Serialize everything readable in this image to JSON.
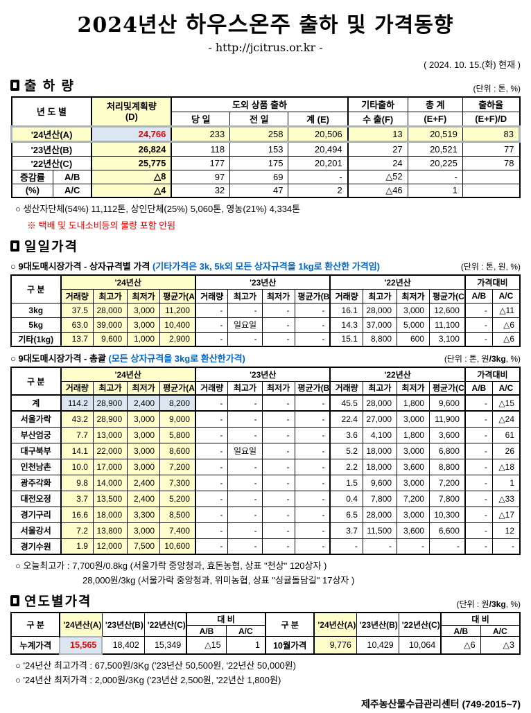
{
  "title": {
    "pre": "2024년산 ",
    "brand": "하우스온주",
    "post": " 출하 및 가격동향"
  },
  "subtitle_url": "- http://jcitrus.or.kr -",
  "as_of": "( 2024. 10. 15.(화) 현재 )",
  "colors": {
    "highlight_yellow": "#FFFFCC",
    "highlight_blue": "#DCE6F1",
    "alert_red": "#E60000",
    "note_blue": "#0064C8"
  },
  "shipment": {
    "section_title": "출 하 량",
    "unit": "(단위 : 톤, %)",
    "header": {
      "year_col": "년  도  별",
      "plan": "처리및계획량",
      "plan_sub": "(D)",
      "outbound_group": "도외 상품 출하",
      "day": "당 일",
      "prev_day": "전 일",
      "sum_e": "계 (E)",
      "etc_group": "기타출하",
      "export_f": "수 출(F)",
      "total": "총  계",
      "total_sub": "(E+F)",
      "rate": "출하율",
      "rate_sub": "(E+F)/D"
    },
    "rows": [
      {
        "label": "'24년산(A)",
        "em": true,
        "cells": [
          "24,766",
          "233",
          "258",
          "20,506",
          "13",
          "20,519",
          "83"
        ]
      },
      {
        "label": "'23년산(B)",
        "em": false,
        "cells": [
          "26,824",
          "118",
          "153",
          "20,494",
          "27",
          "20,521",
          "77"
        ]
      },
      {
        "label": "'22년산(C)",
        "em": false,
        "cells": [
          "25,775",
          "177",
          "175",
          "20,201",
          "24",
          "20,225",
          "78"
        ]
      }
    ],
    "delta_rows": [
      {
        "label1": "증감률",
        "label2": "A/B",
        "cells": [
          "△8",
          "97",
          "69",
          "-",
          "△52",
          "-",
          ""
        ]
      },
      {
        "label1": "(%)",
        "label2": "A/C",
        "cells": [
          "△4",
          "32",
          "47",
          "2",
          "△46",
          "1",
          ""
        ]
      }
    ],
    "note1": "○ 생산자단체(54%) 11,112톤, 상인단체(25%) 5,060톤, 영농(21%) 4,334톤",
    "note2": "※ 택배 및 도내소비등의 물량 포함 안됨"
  },
  "daily": {
    "section_title": "일일가격",
    "gubun": "구  분",
    "col_groups": [
      "'24년산",
      "'23년산",
      "'22년산",
      "가격대비"
    ],
    "sub_cols_24": [
      "거래량",
      "최고가",
      "최저가",
      "평균가(A)"
    ],
    "sub_cols_23": [
      "거래량",
      "최고가",
      "최저가",
      "평균가(B)"
    ],
    "sub_cols_22": [
      "거래량",
      "최고가",
      "최저가",
      "평균가(C)"
    ],
    "compare_cols": [
      "A/B",
      "A/C"
    ],
    "by_size": {
      "title": "○ 9대도매시장가격 - 상자규격별 가격",
      "title_note": "(기타가격은 3k, 5k외 모든 상자규격을 1kg로 환산한 가격임)",
      "unit": "(단위 : 톤,  원, %)",
      "rows": [
        {
          "label": "3kg",
          "em": false,
          "cells": [
            "37.5",
            "28,000",
            "3,000",
            "11,200",
            "-",
            "-",
            "-",
            "-",
            "16.1",
            "28,000",
            "3,000",
            "12,600",
            "-",
            "△11"
          ]
        },
        {
          "label": "5kg",
          "em": false,
          "cells": [
            "63.0",
            "39,000",
            "3,000",
            "10,400",
            "-",
            "일요일",
            "-",
            "-",
            "14.3",
            "37,000",
            "5,000",
            "11,100",
            "-",
            "△6"
          ]
        },
        {
          "label": "기타(1kg)",
          "em": false,
          "cells": [
            "13.7",
            "9,600",
            "1,000",
            "2,900",
            "-",
            "-",
            "-",
            "-",
            "15.1",
            "8,800",
            "600",
            "3,100",
            "-",
            "△6"
          ]
        }
      ]
    },
    "overall": {
      "title": "○ 9대도매시장가격 - 총괄",
      "title_note": "(모든 상자규격을 3kg로 환산한가격)",
      "unit_pre": "(단위 : 톤, 원",
      "unit_bold": "/3kg",
      "unit_post": ", %)",
      "rows": [
        {
          "label": "계",
          "em": true,
          "cells": [
            "114.2",
            "28,900",
            "2,400",
            "8,200",
            "-",
            "-",
            "-",
            "-",
            "45.5",
            "28,000",
            "1,800",
            "9,600",
            "-",
            "△15"
          ]
        },
        {
          "label": "서울가락",
          "em": false,
          "cells": [
            "43.2",
            "28,900",
            "3,000",
            "9,000",
            "-",
            "-",
            "-",
            "-",
            "22.4",
            "27,000",
            "3,000",
            "11,900",
            "-",
            "△24"
          ]
        },
        {
          "label": "부산엄궁",
          "em": false,
          "cells": [
            "7.7",
            "13,000",
            "3,000",
            "5,800",
            "-",
            "-",
            "-",
            "-",
            "3.6",
            "4,100",
            "1,800",
            "3,600",
            "-",
            "61"
          ]
        },
        {
          "label": "대구북부",
          "em": false,
          "cells": [
            "14.1",
            "22,000",
            "3,000",
            "8,600",
            "-",
            "일요일",
            "-",
            "-",
            "5.2",
            "18,000",
            "3,000",
            "6,800",
            "-",
            "26"
          ]
        },
        {
          "label": "인천남촌",
          "em": false,
          "cells": [
            "10.0",
            "17,000",
            "3,000",
            "7,200",
            "-",
            "-",
            "-",
            "-",
            "2.2",
            "18,000",
            "3,600",
            "8,800",
            "-",
            "△18"
          ]
        },
        {
          "label": "광주각화",
          "em": false,
          "cells": [
            "9.8",
            "14,000",
            "2,400",
            "7,300",
            "-",
            "-",
            "-",
            "-",
            "1.5",
            "9,600",
            "3,000",
            "7,200",
            "-",
            "1"
          ]
        },
        {
          "label": "대전오정",
          "em": false,
          "cells": [
            "3.7",
            "13,500",
            "2,400",
            "5,200",
            "-",
            "-",
            "-",
            "-",
            "0.4",
            "7,800",
            "7,200",
            "7,800",
            "-",
            "△33"
          ]
        },
        {
          "label": "경기구리",
          "em": false,
          "cells": [
            "16.6",
            "18,000",
            "3,300",
            "8,500",
            "-",
            "-",
            "-",
            "-",
            "6.5",
            "28,000",
            "3,000",
            "10,300",
            "-",
            "△17"
          ]
        },
        {
          "label": "서울강서",
          "em": false,
          "cells": [
            "7.2",
            "13,800",
            "3,000",
            "7,400",
            "-",
            "-",
            "-",
            "-",
            "3.7",
            "11,500",
            "3,600",
            "6,600",
            "-",
            "12"
          ]
        },
        {
          "label": "경기수원",
          "em": false,
          "cells": [
            "1.9",
            "12,000",
            "7,500",
            "10,600",
            "-",
            "-",
            "-",
            "-",
            "-",
            "-",
            "-",
            "-",
            "-",
            "-"
          ]
        }
      ]
    },
    "today_high_1": "○ 오늘최고가 : 7,700원/0.8kg (서울가락  중앙청과,  효돈농협,  상표 \"천상\"  120상자 )",
    "today_high_2": "28,000원/3kg (서울가락  중앙청과,  위미농협,  상표 \"싱귤돌담길\"  17상자 )"
  },
  "yearly": {
    "section_title": "연도별가격",
    "unit_pre": "(단위 : 원",
    "unit_bold": "/3kg",
    "unit_post": ", %)",
    "gubun": "구     분",
    "compare": "대    비",
    "compare_cols": [
      "A/B",
      "A/C"
    ],
    "left": {
      "year_cols": [
        "'24년산(A)",
        "'23년산(B)",
        "'22년산(C)"
      ],
      "row_label": "누계가격",
      "values": [
        "15,565",
        "18,402",
        "15,349",
        "△15",
        "1"
      ]
    },
    "right": {
      "year_cols": [
        "'24년산(A)",
        "'23년산(B)",
        "'22년산(C)"
      ],
      "row_label": "10월가격",
      "values": [
        "9,776",
        "10,429",
        "10,064",
        "△6",
        "△3"
      ]
    },
    "note1": "○ '24년산 최고가격 : 67,500원/3Kg ('23년산 50,500원, '22년산 50,000원)",
    "note2": "○ '24년산 최저가격 :   2,000원/3Kg ('23년산   2,500원, '22년산   1,800원)"
  },
  "footer": "제주농산물수급관리센터 (749-2015~7)"
}
